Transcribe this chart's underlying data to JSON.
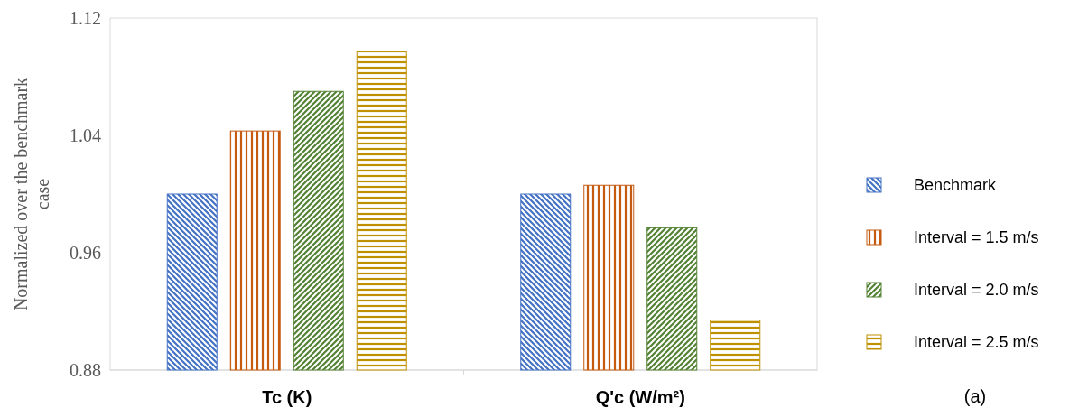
{
  "chart_data": {
    "type": "bar",
    "ylabel": "Normalized over the benchmark case",
    "categories": [
      "Tc (K)",
      "Q'c (W/m²)"
    ],
    "series": [
      {
        "name": "Benchmark",
        "color": "#4472c4",
        "values": [
          1.0,
          1.0
        ]
      },
      {
        "name": "Interval = 1.5 m/s",
        "color": "#c55a11",
        "values": [
          1.043,
          1.006
        ]
      },
      {
        "name": "Interval = 2.0 m/s",
        "color": "#548235",
        "values": [
          1.07,
          0.977
        ]
      },
      {
        "name": "Interval = 2.5 m/s",
        "color": "#bf9000",
        "values": [
          1.097,
          0.914
        ]
      }
    ],
    "ylim": [
      0.88,
      1.12
    ],
    "yticks": [
      0.88,
      0.96,
      1.04,
      1.12
    ],
    "grid": false,
    "legend": "right",
    "annotations": [
      "(a)"
    ]
  }
}
